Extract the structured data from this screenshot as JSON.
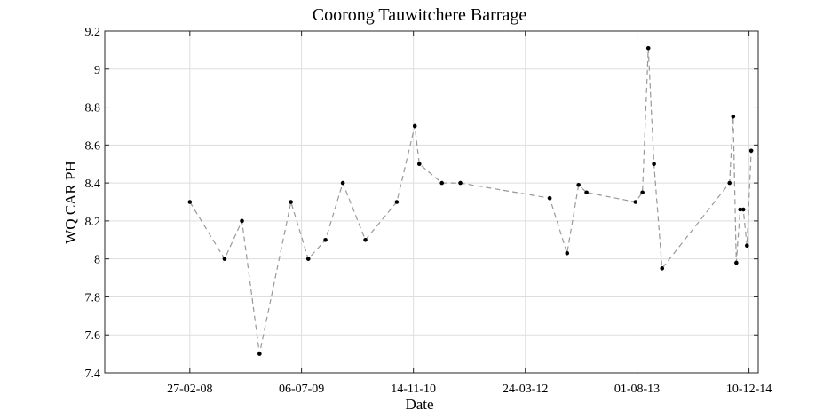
{
  "chart_data": {
    "type": "line",
    "title": "Coorong Tauwitchere Barrage",
    "xlabel": "Date",
    "ylabel": "WQ CAR PH",
    "xlim": [
      "2007-02-15",
      "2015-01-20"
    ],
    "ylim": [
      7.4,
      9.2
    ],
    "x_ticks": [
      "2008-02-27",
      "2009-07-06",
      "2010-11-14",
      "2012-03-24",
      "2013-08-01",
      "2014-12-10"
    ],
    "x_tick_labels": [
      "27-02-08",
      "06-07-09",
      "14-11-10",
      "24-03-12",
      "01-08-13",
      "10-12-14"
    ],
    "y_ticks": [
      7.4,
      7.6,
      7.8,
      8,
      8.2,
      8.4,
      8.6,
      8.8,
      9,
      9.2
    ],
    "y_tick_labels": [
      "7.4",
      "7.6",
      "7.8",
      "8",
      "8.2",
      "8.4",
      "8.6",
      "8.8",
      "9",
      "9.2"
    ],
    "grid": true,
    "line_color": "#999999",
    "marker_color": "#000000",
    "series": [
      {
        "points": [
          {
            "x": "2008-02-27",
            "y": 8.3
          },
          {
            "x": "2008-07-30",
            "y": 8.0
          },
          {
            "x": "2008-10-15",
            "y": 8.2
          },
          {
            "x": "2009-01-01",
            "y": 7.5
          },
          {
            "x": "2009-05-20",
            "y": 8.3
          },
          {
            "x": "2009-08-05",
            "y": 8.0
          },
          {
            "x": "2009-10-20",
            "y": 8.1
          },
          {
            "x": "2010-01-05",
            "y": 8.4
          },
          {
            "x": "2010-04-15",
            "y": 8.1
          },
          {
            "x": "2010-09-01",
            "y": 8.3
          },
          {
            "x": "2010-11-20",
            "y": 8.7
          },
          {
            "x": "2010-12-10",
            "y": 8.5
          },
          {
            "x": "2011-03-20",
            "y": 8.4
          },
          {
            "x": "2011-06-10",
            "y": 8.4
          },
          {
            "x": "2012-07-10",
            "y": 8.32
          },
          {
            "x": "2012-09-25",
            "y": 8.03
          },
          {
            "x": "2012-11-15",
            "y": 8.39
          },
          {
            "x": "2012-12-20",
            "y": 8.35
          },
          {
            "x": "2013-07-25",
            "y": 8.3
          },
          {
            "x": "2013-08-25",
            "y": 8.35
          },
          {
            "x": "2013-09-20",
            "y": 9.11
          },
          {
            "x": "2013-10-15",
            "y": 8.5
          },
          {
            "x": "2013-11-20",
            "y": 7.95
          },
          {
            "x": "2014-09-15",
            "y": 8.4
          },
          {
            "x": "2014-10-01",
            "y": 8.75
          },
          {
            "x": "2014-10-15",
            "y": 7.98
          },
          {
            "x": "2014-11-01",
            "y": 8.26
          },
          {
            "x": "2014-11-15",
            "y": 8.26
          },
          {
            "x": "2014-12-01",
            "y": 8.07
          },
          {
            "x": "2014-12-20",
            "y": 8.57
          }
        ]
      }
    ]
  }
}
